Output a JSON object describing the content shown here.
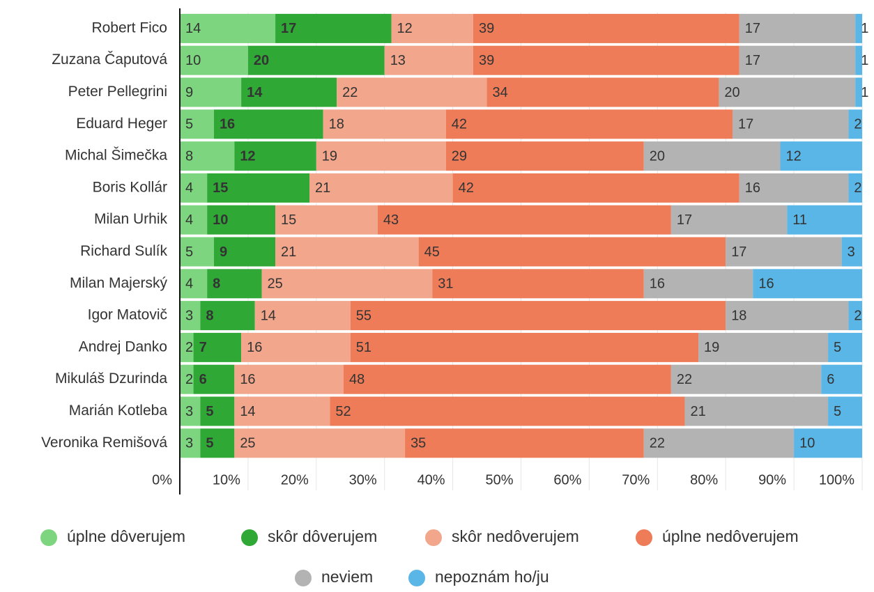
{
  "chart_data": {
    "type": "stacked-bar-horizontal",
    "categories": [
      "Robert Fico",
      "Zuzana Čaputová",
      "Peter Pellegrini",
      "Eduard Heger",
      "Michal Šimečka",
      "Boris Kollár",
      "Milan Urhik",
      "Richard Sulík",
      "Milan Majerský",
      "Igor Matovič",
      "Andrej Danko",
      "Mikuláš Dzurinda",
      "Marián Kotleba",
      "Veronika Remišová"
    ],
    "series": [
      {
        "name": "úplne dôverujem",
        "color": "#7dd67f",
        "values": [
          14,
          10,
          9,
          5,
          8,
          4,
          4,
          5,
          4,
          3,
          2,
          2,
          3,
          3
        ]
      },
      {
        "name": "skôr dôverujem",
        "color": "#2fa836",
        "values": [
          17,
          20,
          14,
          16,
          12,
          15,
          10,
          9,
          8,
          8,
          7,
          6,
          5,
          5
        ]
      },
      {
        "name": "skôr nedôverujem",
        "color": "#f2a68b",
        "values": [
          12,
          13,
          22,
          18,
          19,
          21,
          15,
          21,
          25,
          14,
          16,
          16,
          14,
          25
        ]
      },
      {
        "name": "úplne nedôverujem",
        "color": "#ee7c58",
        "values": [
          39,
          39,
          34,
          42,
          29,
          42,
          43,
          45,
          31,
          55,
          51,
          48,
          52,
          35
        ]
      },
      {
        "name": "neviem",
        "color": "#b3b3b3",
        "values": [
          17,
          17,
          20,
          17,
          20,
          16,
          17,
          17,
          16,
          18,
          19,
          22,
          21,
          22
        ]
      },
      {
        "name": "nepoznám ho/ju",
        "color": "#5ab6e6",
        "values": [
          1,
          1,
          1,
          2,
          12,
          2,
          11,
          3,
          16,
          2,
          5,
          6,
          5,
          10
        ]
      }
    ],
    "xlim": [
      0,
      100
    ],
    "xticks": [
      {
        "value": 0,
        "label": "0%"
      },
      {
        "value": 10,
        "label": "10%"
      },
      {
        "value": 20,
        "label": "20%"
      },
      {
        "value": 30,
        "label": "30%"
      },
      {
        "value": 40,
        "label": "40%"
      },
      {
        "value": 50,
        "label": "50%"
      },
      {
        "value": 60,
        "label": "60%"
      },
      {
        "value": 70,
        "label": "70%"
      },
      {
        "value": 80,
        "label": "80%"
      },
      {
        "value": 90,
        "label": "90%"
      },
      {
        "value": 100,
        "label": "100%"
      }
    ],
    "grid": true
  }
}
